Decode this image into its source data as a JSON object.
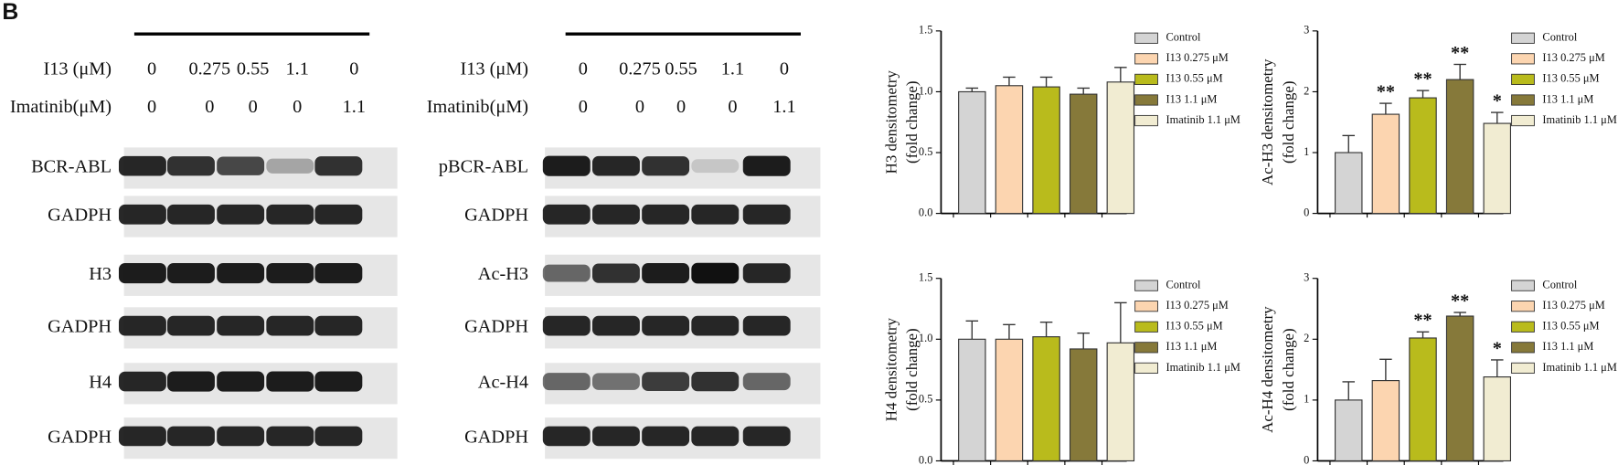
{
  "panel_label": "B",
  "blots": [
    {
      "conditions": [
        {
          "label": "I13 (μM)",
          "values": [
            "0",
            "0.275",
            "0.55",
            "1.1",
            "0"
          ]
        },
        {
          "label": "Imatinib(μM)",
          "values": [
            "0",
            "0",
            "0",
            "0",
            "1.1"
          ]
        }
      ],
      "rows": [
        "BCR-ABL",
        "GADPH",
        "H3",
        "GADPH",
        "H4",
        "GADPH"
      ]
    },
    {
      "conditions": [
        {
          "label": "I13 (μM)",
          "values": [
            "0",
            "0.275",
            "0.55",
            "1.1",
            "0"
          ]
        },
        {
          "label": "Imatinib(μM)",
          "values": [
            "0",
            "0",
            "0",
            "0",
            "1.1"
          ]
        }
      ],
      "rows": [
        "pBCR-ABL",
        "GADPH",
        "Ac-H3",
        "GADPH",
        "Ac-H4",
        "GADPH"
      ]
    }
  ],
  "chart_data": [
    {
      "type": "bar",
      "ylabel": [
        "H3 densitometry",
        "(fold change)"
      ],
      "ylim": [
        0,
        1.5
      ],
      "yticks": [
        {
          "value": 0,
          "label": "0.0"
        },
        0.5,
        {
          "value": 1,
          "label": "1.0"
        },
        1.5
      ],
      "series": [
        {
          "name": "Control",
          "color": "#d4d4d4",
          "values": [
            1.0
          ],
          "errors": [
            0.03
          ]
        },
        {
          "name": "I13 0.275 μM",
          "color": "#fcd5b0",
          "values": [
            1.05
          ],
          "errors": [
            0.07
          ]
        },
        {
          "name": "I13 0.55 μM",
          "color": "#b9bb1c",
          "values": [
            1.04
          ],
          "errors": [
            0.08
          ]
        },
        {
          "name": "I13 1.1 μM",
          "color": "#86793a",
          "values": [
            0.98
          ],
          "errors": [
            0.05
          ]
        },
        {
          "name": "Imatinib 1.1 μM",
          "color": "#f1ecd2",
          "values": [
            1.08
          ],
          "errors": [
            0.12
          ]
        }
      ]
    },
    {
      "type": "bar",
      "ylabel": [
        "Ac-H3 densitometry",
        "(fold change)"
      ],
      "ylim": [
        0,
        3
      ],
      "yticks": [
        0,
        1,
        2,
        3
      ],
      "series": [
        {
          "name": "Control",
          "color": "#d4d4d4",
          "values": [
            1.0
          ],
          "errors": [
            0.28
          ]
        },
        {
          "name": "I13 0.275 μM",
          "color": "#fcd5b0",
          "values": [
            1.63
          ],
          "errors": [
            0.18
          ],
          "annotation": "**"
        },
        {
          "name": "I13 0.55 μM",
          "color": "#b9bb1c",
          "values": [
            1.9
          ],
          "errors": [
            0.12
          ],
          "annotation": "**"
        },
        {
          "name": "I13 1.1 μM",
          "color": "#86793a",
          "values": [
            2.2
          ],
          "errors": [
            0.25
          ],
          "annotation": "**"
        },
        {
          "name": "Imatinib 1.1 μM",
          "color": "#f1ecd2",
          "values": [
            1.48
          ],
          "errors": [
            0.18
          ],
          "annotation": "*"
        }
      ]
    },
    {
      "type": "bar",
      "ylabel": [
        "H4 densitometry",
        "(fold change)"
      ],
      "ylim": [
        0,
        1.5
      ],
      "yticks": [
        {
          "value": 0,
          "label": "0.0"
        },
        0.5,
        {
          "value": 1,
          "label": "1.0"
        },
        1.5
      ],
      "series": [
        {
          "name": "Control",
          "color": "#d4d4d4",
          "values": [
            1.0
          ],
          "errors": [
            0.15
          ]
        },
        {
          "name": "I13 0.275 μM",
          "color": "#fcd5b0",
          "values": [
            1.0
          ],
          "errors": [
            0.12
          ]
        },
        {
          "name": "I13 0.55 μM",
          "color": "#b9bb1c",
          "values": [
            1.02
          ],
          "errors": [
            0.12
          ]
        },
        {
          "name": "I13 1.1 μM",
          "color": "#86793a",
          "values": [
            0.92
          ],
          "errors": [
            0.13
          ]
        },
        {
          "name": "Imatinib 1.1 μM",
          "color": "#f1ecd2",
          "values": [
            0.97
          ],
          "errors": [
            0.33
          ]
        }
      ]
    },
    {
      "type": "bar",
      "ylabel": [
        "Ac-H4 densitometry",
        "(fold change)"
      ],
      "ylim": [
        0,
        3
      ],
      "yticks": [
        0,
        1,
        2,
        3
      ],
      "series": [
        {
          "name": "Control",
          "color": "#d4d4d4",
          "values": [
            1.0
          ],
          "errors": [
            0.3
          ]
        },
        {
          "name": "I13 0.275 μM",
          "color": "#fcd5b0",
          "values": [
            1.32
          ],
          "errors": [
            0.35
          ]
        },
        {
          "name": "I13 0.55 μM",
          "color": "#b9bb1c",
          "values": [
            2.02
          ],
          "errors": [
            0.1
          ],
          "annotation": "**"
        },
        {
          "name": "I13 1.1 μM",
          "color": "#86793a",
          "values": [
            2.38
          ],
          "errors": [
            0.06
          ],
          "annotation": "**"
        },
        {
          "name": "Imatinib 1.1 μM",
          "color": "#f1ecd2",
          "values": [
            1.38
          ],
          "errors": [
            0.28
          ],
          "annotation": "*"
        }
      ]
    }
  ]
}
